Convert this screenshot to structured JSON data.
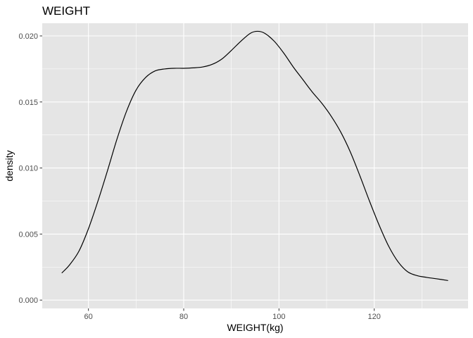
{
  "chart_data": {
    "type": "line",
    "title": "WEIGHT",
    "xlabel": "WEIGHT(kg)",
    "ylabel": "density",
    "xlim": [
      50.3,
      139.7
    ],
    "ylim": [
      -0.00063,
      0.02096
    ],
    "x_ticks": [
      60,
      80,
      100,
      120
    ],
    "x_tick_labels": [
      "60",
      "80",
      "100",
      "120"
    ],
    "x_minor_ticks": [
      50,
      70,
      90,
      110,
      130
    ],
    "y_ticks": [
      0,
      0.005,
      0.01,
      0.015,
      0.02
    ],
    "y_tick_labels": [
      "0.000",
      "0.005",
      "0.010",
      "0.015",
      "0.020"
    ],
    "y_minor_ticks": [
      0.0025,
      0.0075,
      0.0125,
      0.0175
    ],
    "grid": true,
    "legend": "none",
    "colors": {
      "panel_background": "#e5e5e5",
      "grid_line": "#ffffff",
      "curve": "#000000",
      "tick_text": "#4d4d4d",
      "tick_mark": "#333333"
    },
    "series": [
      {
        "x": [
          54.4,
          56.0,
          58.0,
          60.0,
          62.0,
          64.0,
          66.0,
          68.0,
          70.0,
          72.0,
          74.0,
          76.0,
          78.0,
          80.0,
          82.0,
          84.0,
          86.0,
          88.0,
          90.0,
          92.0,
          94.0,
          95.5,
          97.0,
          99.0,
          101.0,
          103.0,
          105.0,
          107.0,
          109.0,
          111.0,
          113.0,
          115.0,
          117.0,
          119.0,
          121.0,
          123.0,
          125.0,
          127.0,
          129.0,
          131.0,
          133.0,
          135.5
        ],
        "y": [
          0.00205,
          0.00265,
          0.0037,
          0.0054,
          0.0075,
          0.0098,
          0.0122,
          0.0143,
          0.0159,
          0.01685,
          0.01735,
          0.0175,
          0.01755,
          0.01755,
          0.01758,
          0.01765,
          0.01785,
          0.01825,
          0.0189,
          0.0196,
          0.0202,
          0.02035,
          0.0202,
          0.0196,
          0.0187,
          0.01765,
          0.0167,
          0.01575,
          0.0149,
          0.0139,
          0.0127,
          0.0112,
          0.0094,
          0.0075,
          0.0057,
          0.0041,
          0.0029,
          0.00215,
          0.00185,
          0.00172,
          0.00162,
          0.00148
        ]
      }
    ]
  }
}
